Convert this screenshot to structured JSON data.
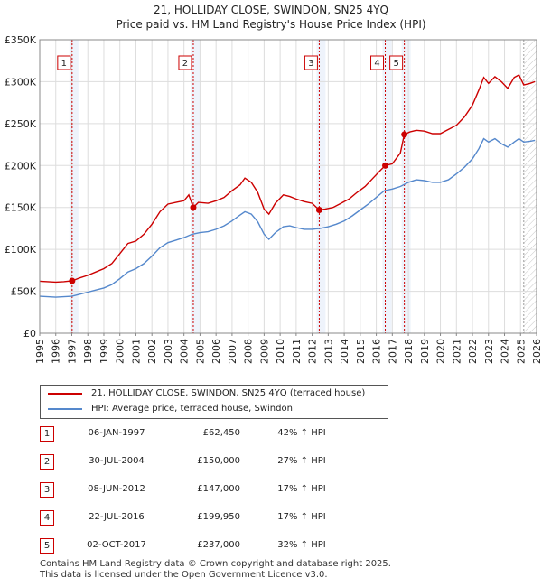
{
  "header": {
    "title_line1": "21, HOLLIDAY CLOSE, SWINDON, SN25 4YQ",
    "title_line2": "Price paid vs. HM Land Registry's House Price Index (HPI)"
  },
  "chart_data": {
    "type": "line",
    "xlabel": "",
    "ylabel": "",
    "xlim": [
      1995,
      2026
    ],
    "ylim": [
      0,
      350000
    ],
    "x_ticks": [
      "1995",
      "1996",
      "1997",
      "1998",
      "1999",
      "2000",
      "2001",
      "2002",
      "2003",
      "2004",
      "2005",
      "2006",
      "2007",
      "2008",
      "2009",
      "2010",
      "2011",
      "2012",
      "2013",
      "2014",
      "2015",
      "2016",
      "2017",
      "2018",
      "2019",
      "2020",
      "2021",
      "2022",
      "2023",
      "2024",
      "2025",
      "2026"
    ],
    "y_ticks": [
      {
        "value": 0,
        "label": "£0"
      },
      {
        "value": 50000,
        "label": "£50K"
      },
      {
        "value": 100000,
        "label": "£100K"
      },
      {
        "value": 150000,
        "label": "£150K"
      },
      {
        "value": 200000,
        "label": "£200K"
      },
      {
        "value": 250000,
        "label": "£250K"
      },
      {
        "value": 300000,
        "label": "£300K"
      },
      {
        "value": 350000,
        "label": "£350K"
      }
    ],
    "grid": true,
    "forecast_from": 2025.2,
    "series": [
      {
        "name": "21, HOLLIDAY CLOSE, SWINDON, SN25 4YQ (terraced house)",
        "color": "#cc0000",
        "points": [
          [
            1995.0,
            62000
          ],
          [
            1995.5,
            61500
          ],
          [
            1996.0,
            61000
          ],
          [
            1996.5,
            61500
          ],
          [
            1997.02,
            62450
          ],
          [
            1997.5,
            66000
          ],
          [
            1998.0,
            69000
          ],
          [
            1998.5,
            73000
          ],
          [
            1999.0,
            77000
          ],
          [
            1999.5,
            83000
          ],
          [
            2000.0,
            95000
          ],
          [
            2000.5,
            107000
          ],
          [
            2001.0,
            110000
          ],
          [
            2001.5,
            118000
          ],
          [
            2002.0,
            130000
          ],
          [
            2002.5,
            145000
          ],
          [
            2003.0,
            154000
          ],
          [
            2003.5,
            156000
          ],
          [
            2004.0,
            158000
          ],
          [
            2004.3,
            165000
          ],
          [
            2004.58,
            150000
          ],
          [
            2004.9,
            156000
          ],
          [
            2005.5,
            155000
          ],
          [
            2006.0,
            158000
          ],
          [
            2006.5,
            162000
          ],
          [
            2007.0,
            170000
          ],
          [
            2007.5,
            177000
          ],
          [
            2007.8,
            185000
          ],
          [
            2008.2,
            180000
          ],
          [
            2008.6,
            168000
          ],
          [
            2009.0,
            148000
          ],
          [
            2009.3,
            142000
          ],
          [
            2009.7,
            155000
          ],
          [
            2010.2,
            165000
          ],
          [
            2010.6,
            163000
          ],
          [
            2011.0,
            160000
          ],
          [
            2011.5,
            157000
          ],
          [
            2012.0,
            155000
          ],
          [
            2012.44,
            147000
          ],
          [
            2012.8,
            148000
          ],
          [
            2013.3,
            150000
          ],
          [
            2013.8,
            155000
          ],
          [
            2014.3,
            160000
          ],
          [
            2014.8,
            168000
          ],
          [
            2015.3,
            175000
          ],
          [
            2015.8,
            185000
          ],
          [
            2016.3,
            195000
          ],
          [
            2016.56,
            199950
          ],
          [
            2017.0,
            202000
          ],
          [
            2017.5,
            215000
          ],
          [
            2017.75,
            237000
          ],
          [
            2018.1,
            240000
          ],
          [
            2018.5,
            242000
          ],
          [
            2019.0,
            241000
          ],
          [
            2019.5,
            238000
          ],
          [
            2020.0,
            238000
          ],
          [
            2020.5,
            243000
          ],
          [
            2021.0,
            248000
          ],
          [
            2021.5,
            258000
          ],
          [
            2022.0,
            272000
          ],
          [
            2022.4,
            290000
          ],
          [
            2022.7,
            305000
          ],
          [
            2023.0,
            298000
          ],
          [
            2023.4,
            306000
          ],
          [
            2023.8,
            300000
          ],
          [
            2024.2,
            292000
          ],
          [
            2024.6,
            305000
          ],
          [
            2024.9,
            308000
          ],
          [
            2025.2,
            296000
          ],
          [
            2025.6,
            298000
          ],
          [
            2025.9,
            300000
          ]
        ]
      },
      {
        "name": "HPI: Average price, terraced house, Swindon",
        "color": "#5588cc",
        "points": [
          [
            1995.0,
            44000
          ],
          [
            1995.5,
            43500
          ],
          [
            1996.0,
            43000
          ],
          [
            1996.5,
            43500
          ],
          [
            1997.0,
            44000
          ],
          [
            1997.5,
            46500
          ],
          [
            1998.0,
            49000
          ],
          [
            1998.5,
            51500
          ],
          [
            1999.0,
            54000
          ],
          [
            1999.5,
            58000
          ],
          [
            2000.0,
            65000
          ],
          [
            2000.5,
            73000
          ],
          [
            2001.0,
            77000
          ],
          [
            2001.5,
            83000
          ],
          [
            2002.0,
            92000
          ],
          [
            2002.5,
            102000
          ],
          [
            2003.0,
            108000
          ],
          [
            2003.5,
            111000
          ],
          [
            2004.0,
            114000
          ],
          [
            2004.5,
            118000
          ],
          [
            2005.0,
            120000
          ],
          [
            2005.5,
            121000
          ],
          [
            2006.0,
            124000
          ],
          [
            2006.5,
            128000
          ],
          [
            2007.0,
            134000
          ],
          [
            2007.5,
            141000
          ],
          [
            2007.8,
            145000
          ],
          [
            2008.2,
            142000
          ],
          [
            2008.6,
            133000
          ],
          [
            2009.0,
            118000
          ],
          [
            2009.3,
            112000
          ],
          [
            2009.7,
            120000
          ],
          [
            2010.2,
            127000
          ],
          [
            2010.6,
            128000
          ],
          [
            2011.0,
            126000
          ],
          [
            2011.5,
            124000
          ],
          [
            2012.0,
            124000
          ],
          [
            2012.5,
            125000
          ],
          [
            2013.0,
            127000
          ],
          [
            2013.5,
            130000
          ],
          [
            2014.0,
            134000
          ],
          [
            2014.5,
            140000
          ],
          [
            2015.0,
            147000
          ],
          [
            2015.5,
            154000
          ],
          [
            2016.0,
            162000
          ],
          [
            2016.5,
            170000
          ],
          [
            2017.0,
            172000
          ],
          [
            2017.5,
            175000
          ],
          [
            2018.0,
            180000
          ],
          [
            2018.5,
            183000
          ],
          [
            2019.0,
            182000
          ],
          [
            2019.5,
            180000
          ],
          [
            2020.0,
            180000
          ],
          [
            2020.5,
            183000
          ],
          [
            2021.0,
            190000
          ],
          [
            2021.5,
            198000
          ],
          [
            2022.0,
            208000
          ],
          [
            2022.4,
            220000
          ],
          [
            2022.7,
            232000
          ],
          [
            2023.0,
            228000
          ],
          [
            2023.4,
            232000
          ],
          [
            2023.8,
            226000
          ],
          [
            2024.2,
            222000
          ],
          [
            2024.6,
            228000
          ],
          [
            2024.9,
            232000
          ],
          [
            2025.2,
            228000
          ],
          [
            2025.6,
            229000
          ],
          [
            2025.9,
            230000
          ]
        ]
      }
    ],
    "sales": [
      {
        "label": "1",
        "x": 1997.02,
        "price": 62450
      },
      {
        "label": "2",
        "x": 2004.58,
        "price": 150000
      },
      {
        "label": "3",
        "x": 2012.44,
        "price": 147000
      },
      {
        "label": "4",
        "x": 2016.56,
        "price": 199950
      },
      {
        "label": "5",
        "x": 2017.75,
        "price": 237000
      }
    ]
  },
  "legend": {
    "property_label": "21, HOLLIDAY CLOSE, SWINDON, SN25 4YQ (terraced house)",
    "hpi_label": "HPI: Average price, terraced house, Swindon"
  },
  "transactions": [
    {
      "num": "1",
      "date": "06-JAN-1997",
      "price": "£62,450",
      "hpi": "42% ↑ HPI"
    },
    {
      "num": "2",
      "date": "30-JUL-2004",
      "price": "£150,000",
      "hpi": "27% ↑ HPI"
    },
    {
      "num": "3",
      "date": "08-JUN-2012",
      "price": "£147,000",
      "hpi": "17% ↑ HPI"
    },
    {
      "num": "4",
      "date": "22-JUL-2016",
      "price": "£199,950",
      "hpi": "17% ↑ HPI"
    },
    {
      "num": "5",
      "date": "02-OCT-2017",
      "price": "£237,000",
      "hpi": "32% ↑ HPI"
    }
  ],
  "footer": {
    "line1": "Contains HM Land Registry data © Crown copyright and database right 2025.",
    "line2": "This data is licensed under the Open Government Licence v3.0."
  }
}
